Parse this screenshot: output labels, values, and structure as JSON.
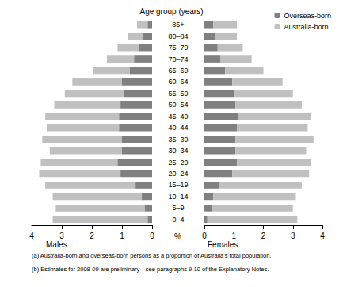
{
  "chart_data": {
    "type": "bar",
    "orientation": "horizontal",
    "stacked": true,
    "title": "Age group (years)",
    "x_label": "%",
    "legend": "top-right",
    "categories": [
      "0–4",
      "5–9",
      "10–14",
      "15–19",
      "20–24",
      "25–29",
      "30–34",
      "35–39",
      "40–44",
      "45–49",
      "50–54",
      "55–59",
      "60–64",
      "65–69",
      "70–74",
      "75–79",
      "80–84",
      "85+"
    ],
    "notes": [
      "(a) Australia-born and overseas-born persons as a proportion of Australia's total population.",
      "(b) Estimates for 2008-09 are preliminary—see paragraphs 9-10 of the Explanatory Notes."
    ],
    "panels": [
      {
        "x_label": "Males",
        "xlim": [
          4,
          0
        ],
        "xticks": [
          0,
          1,
          2,
          3,
          4
        ],
        "series": [
          {
            "name": "Overseas-born",
            "color": "#808080",
            "values": [
              0.15,
              0.25,
              0.35,
              0.55,
              1.05,
              1.15,
              1.0,
              1.0,
              1.1,
              1.1,
              1.05,
              0.95,
              1.0,
              0.75,
              0.6,
              0.45,
              0.3,
              0.15
            ]
          },
          {
            "name": "Australia-born",
            "color": "#c0c0c0",
            "values": [
              3.15,
              2.95,
              2.95,
              3.0,
              2.7,
              2.55,
              2.4,
              2.65,
              2.4,
              2.45,
              2.2,
              1.95,
              1.65,
              1.2,
              0.9,
              0.7,
              0.5,
              0.35
            ]
          }
        ]
      },
      {
        "x_label": "Females",
        "xlim": [
          0,
          4
        ],
        "xticks": [
          0,
          1,
          2,
          3,
          4
        ],
        "series": [
          {
            "name": "Overseas-born",
            "color": "#808080",
            "values": [
              0.1,
              0.25,
              0.3,
              0.5,
              0.95,
              1.1,
              1.05,
              1.05,
              1.1,
              1.15,
              1.05,
              1.0,
              0.95,
              0.7,
              0.55,
              0.45,
              0.35,
              0.3
            ]
          },
          {
            "name": "Australia-born",
            "color": "#c0c0c0",
            "values": [
              3.05,
              2.75,
              2.8,
              2.8,
              2.6,
              2.5,
              2.4,
              2.65,
              2.4,
              2.45,
              2.25,
              2.0,
              1.7,
              1.3,
              1.05,
              0.85,
              0.75,
              0.8
            ]
          }
        ]
      }
    ]
  }
}
